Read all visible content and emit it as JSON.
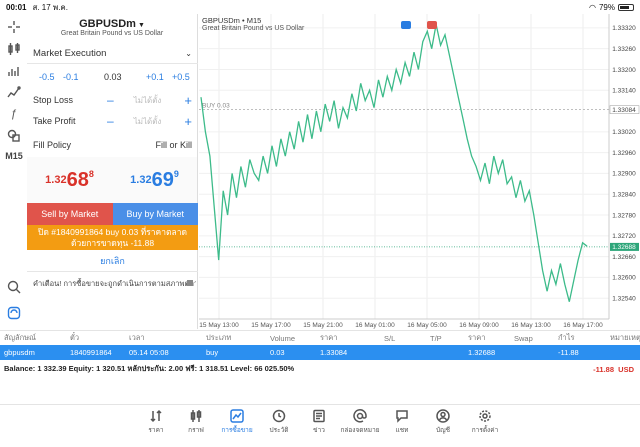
{
  "status": {
    "time": "00:01",
    "date": "ส. 17 พ.ค.",
    "battery": "79%",
    "battery_level": 0.79
  },
  "toolbar": {
    "timeframe": "M15"
  },
  "panel": {
    "symbol": "GBPUSDm",
    "symbol_desc": "Great Britain Pound vs US Dollar",
    "execution": "Market Execution",
    "vol_minus_big": "-0.5",
    "vol_minus_small": "-0.1",
    "volume": "0.03",
    "vol_plus_small": "+0.1",
    "vol_plus_big": "+0.5",
    "stop_loss_label": "Stop Loss",
    "stop_loss_value": "ไม่ได้ตั้ง",
    "take_profit_label": "Take Profit",
    "take_profit_value": "ไม่ได้ตั้ง",
    "fill_policy_label": "Fill Policy",
    "fill_policy_value": "Fill or Kill",
    "bid_small": "1.32",
    "bid_big": "68",
    "bid_sup": "8",
    "ask_small": "1.32",
    "ask_big": "69",
    "ask_sup": "9",
    "sell_label": "Sell by Market",
    "buy_label": "Buy by Market",
    "close_text": "ปิด #1840991864 buy 0.03 ที่ราคาตลาดด้วยการขาดทุน -11.88",
    "cancel_label": "ยกเลิก",
    "warning": "คำเตือน! การซื้อขายจะถูกดำเนินการตามสภาพตลาด..."
  },
  "chart_data": {
    "type": "line",
    "title": "GBPUSDm • M15",
    "subtitle": "Great Britain Pound vs US Dollar",
    "buy_line_label": "BUY 0.03",
    "buy_line_price": 1.33084,
    "current_price": 1.32688,
    "ylim": [
      1.3248,
      1.3336
    ],
    "y_ticks": [
      "1.33320",
      "1.33260",
      "1.33200",
      "1.33140",
      "1.33084",
      "1.33020",
      "1.32960",
      "1.32900",
      "1.32840",
      "1.32780",
      "1.32720",
      "1.32688",
      "1.32660",
      "1.32600",
      "1.32540"
    ],
    "x_ticks": [
      "15 May 13:00",
      "15 May 17:00",
      "15 May 21:00",
      "16 May 01:00",
      "16 May 05:00",
      "16 May 09:00",
      "16 May 13:00",
      "16 May 17:00"
    ],
    "values": [
      1.3312,
      1.3302,
      1.3295,
      1.328,
      1.3265,
      1.3285,
      1.3278,
      1.329,
      1.3283,
      1.3292,
      1.3286,
      1.3294,
      1.329,
      1.3288,
      1.3295,
      1.329,
      1.3298,
      1.3292,
      1.33,
      1.3295,
      1.3302,
      1.3297,
      1.3305,
      1.3299,
      1.3307,
      1.33,
      1.3308,
      1.3302,
      1.331,
      1.3305,
      1.3311,
      1.3303,
      1.3309,
      1.3306,
      1.3313,
      1.3308,
      1.3316,
      1.3311,
      1.3314,
      1.3309,
      1.3317,
      1.3312,
      1.3318,
      1.3314,
      1.332,
      1.3316,
      1.3322,
      1.3318,
      1.3325,
      1.332,
      1.3328,
      1.3331,
      1.3326,
      1.3333,
      1.3327,
      1.333,
      1.3324,
      1.3318,
      1.3312,
      1.3306,
      1.33,
      1.3295,
      1.3292,
      1.3288,
      1.3293,
      1.3287,
      1.3295,
      1.329,
      1.3294,
      1.3287,
      1.3289,
      1.3283,
      1.3288,
      1.3282,
      1.3285,
      1.3278,
      1.327,
      1.3262,
      1.3256,
      1.3262,
      1.3258,
      1.3264,
      1.3258,
      1.3253,
      1.3259,
      1.3265,
      1.327,
      1.3269
    ]
  },
  "table": {
    "headers": [
      "สัญลักษณ์",
      "ตั๋ว",
      "เวลา",
      "ประเภท",
      "Volume",
      "ราคา",
      "S/L",
      "T/P",
      "ราคา",
      "Swap",
      "กำไร",
      "หมายเหตุ"
    ],
    "row": [
      "gbpusdm",
      "1840991864",
      "05.14 05:08",
      "buy",
      "0.03",
      "1.33084",
      "",
      "",
      "1.32688",
      "",
      "-11.88",
      ""
    ]
  },
  "summary": {
    "text": "Balance: 1 332.39 Equity: 1 320.51 หลักประกัน: 2.00 ฟรี: 1 318.51 Level: 66 025.50%",
    "profit": "-11.88",
    "currency": "USD"
  },
  "nav": [
    {
      "label": "ราคา",
      "icon": "quotes-icon"
    },
    {
      "label": "กราฟ",
      "icon": "chart-icon"
    },
    {
      "label": "การซื้อขาย",
      "icon": "trade-icon"
    },
    {
      "label": "ประวัติ",
      "icon": "history-icon"
    },
    {
      "label": "ข่าว",
      "icon": "news-icon"
    },
    {
      "label": "กล่องจดหมาย",
      "icon": "mail-icon"
    },
    {
      "label": "แชท",
      "icon": "chat-icon"
    },
    {
      "label": "บัญชี",
      "icon": "account-icon"
    },
    {
      "label": "การตั้งค่า",
      "icon": "settings-icon"
    }
  ]
}
